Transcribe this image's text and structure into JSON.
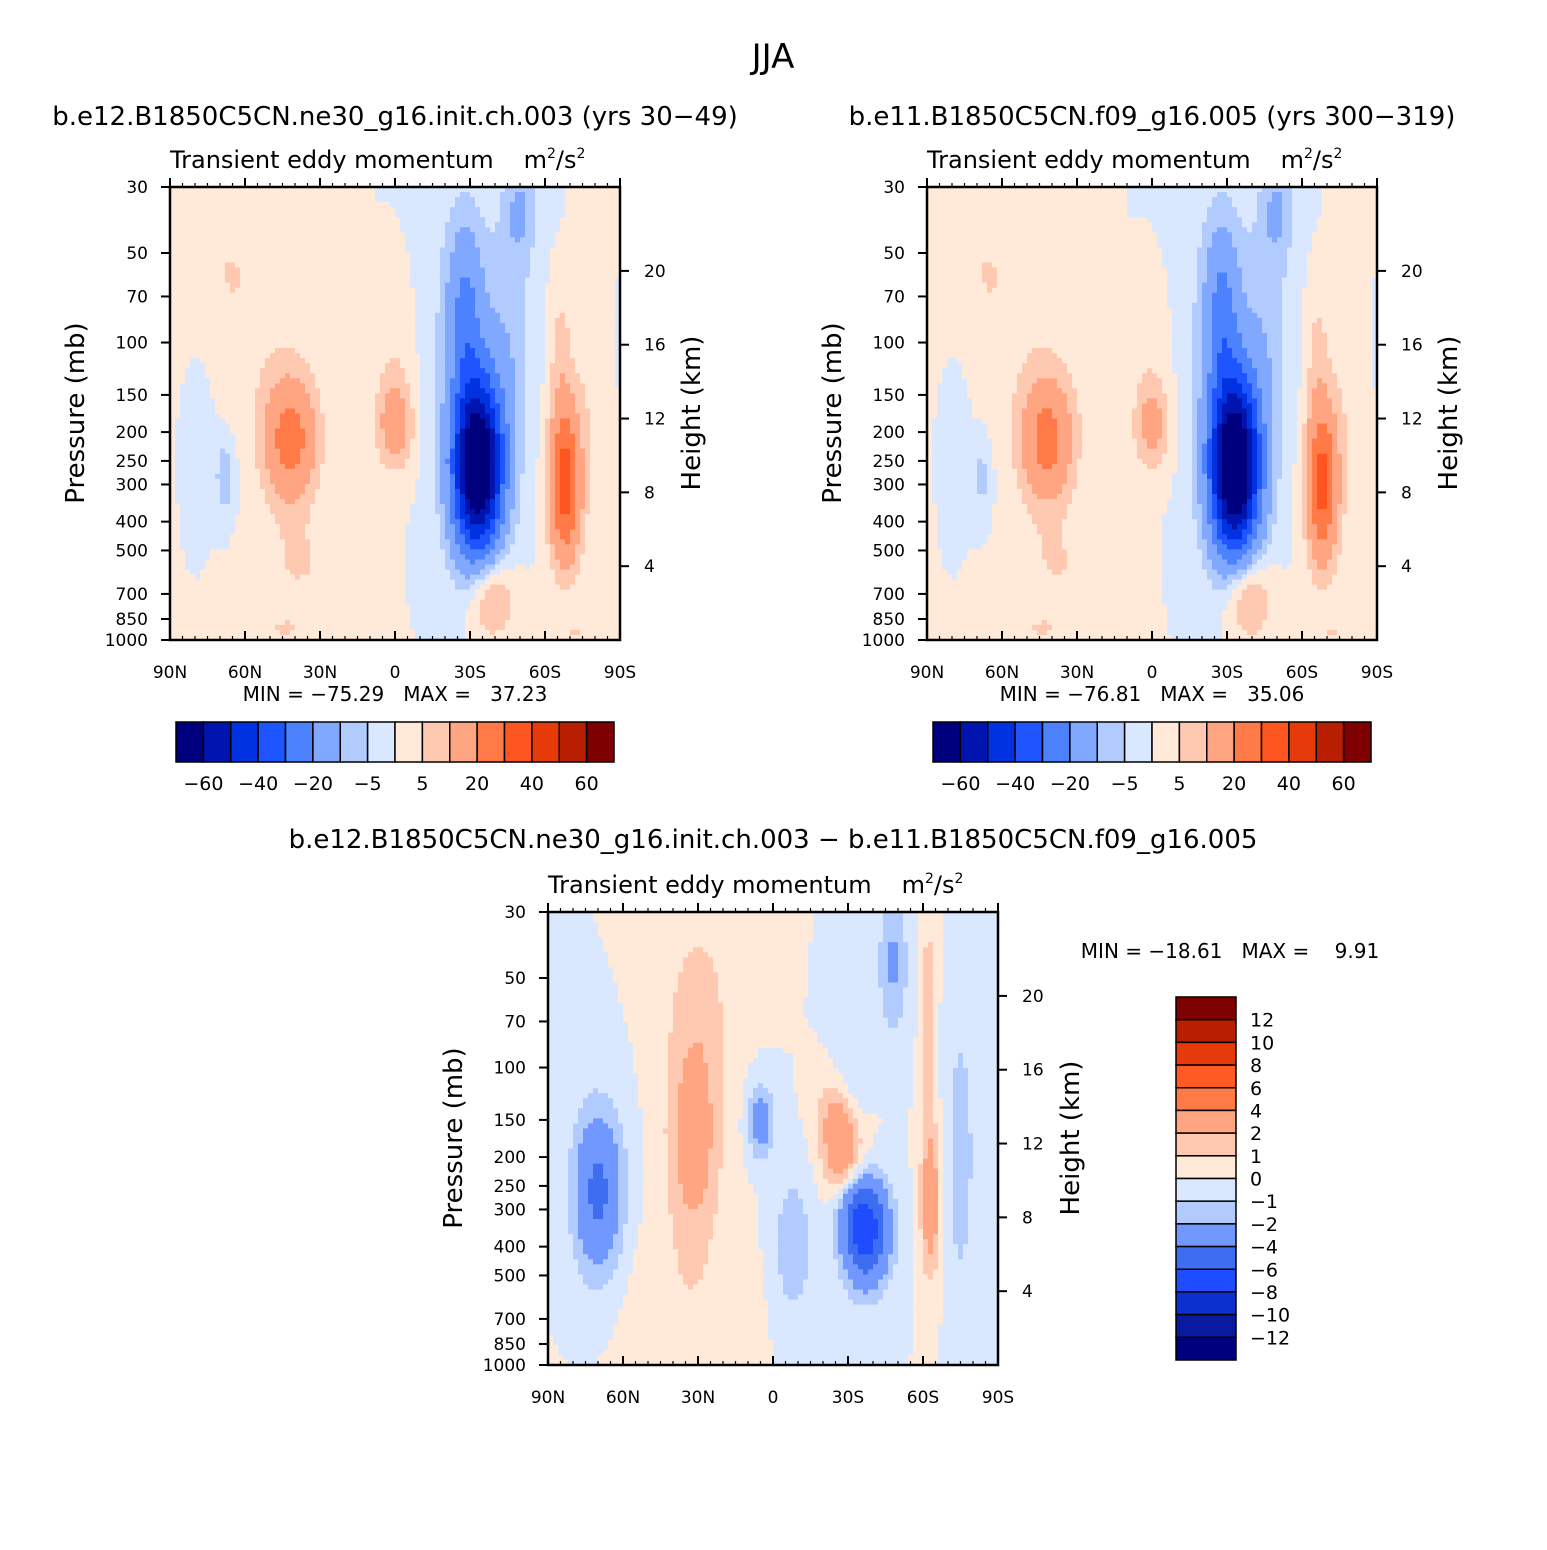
{
  "figure": {
    "season_title": "JJA",
    "colors": {
      "abs": [
        "#00007f",
        "#0014b0",
        "#0032e1",
        "#1f55ff",
        "#4d82ff",
        "#80a8ff",
        "#b2cbff",
        "#d9e8ff",
        "#ffe9d9",
        "#ffc8b0",
        "#ffa582",
        "#ff7a47",
        "#ff5520",
        "#e63a0a",
        "#b81e00",
        "#7f0000"
      ],
      "diff": [
        "#00007f",
        "#0a1aa0",
        "#0b30d0",
        "#1f4cff",
        "#3d6df0",
        "#7098ff",
        "#b2cbff",
        "#d9e8ff",
        "#ffe9d9",
        "#ffc8b0",
        "#ffa582",
        "#ff7a47",
        "#ff5a24",
        "#e63a0a",
        "#b81e00",
        "#7f0000"
      ]
    },
    "panels": [
      {
        "case_title": "b.e12.B1850C5CN.ne30_g16.init.ch.003 (yrs 30−49)",
        "subtitle_var": "Transient eddy momentum",
        "subtitle_units_base": "m",
        "subtitle_units_exp1": "2",
        "subtitle_units_mid": "/s",
        "subtitle_units_exp2": "2",
        "stats": "MIN = −75.29   MAX =   37.23",
        "ylabel": "Pressure (mb)",
        "ylabel_right": "Height (km)"
      },
      {
        "case_title": "b.e11.B1850C5CN.f09_g16.005 (yrs 300−319)",
        "subtitle_var": "Transient eddy momentum",
        "subtitle_units_base": "m",
        "subtitle_units_exp1": "2",
        "subtitle_units_mid": "/s",
        "subtitle_units_exp2": "2",
        "stats": "MIN = −76.81   MAX =   35.06",
        "ylabel": "Pressure (mb)",
        "ylabel_right": "Height (km)"
      },
      {
        "case_title": "b.e12.B1850C5CN.ne30_g16.init.ch.003 − b.e11.B1850C5CN.f09_g16.005",
        "subtitle_var": "Transient eddy momentum",
        "subtitle_units_base": "m",
        "subtitle_units_exp1": "2",
        "subtitle_units_mid": "/s",
        "subtitle_units_exp2": "2",
        "stats": "MIN = −18.61   MAX =    9.91",
        "ylabel": "Pressure (mb)",
        "ylabel_right": "Height (km)"
      }
    ]
  },
  "chart_data": [
    {
      "type": "heatmap",
      "title": "b.e12.B1850C5CN.ne30_g16.init.ch.003 (yrs 30−49)",
      "variable": "Transient eddy momentum",
      "x_ticks": [
        "90N",
        "60N",
        "30N",
        "0",
        "30S",
        "60S",
        "90S"
      ],
      "x_tick_values": [
        90,
        60,
        30,
        0,
        -30,
        -60,
        -90
      ],
      "y_ticks": [
        30,
        50,
        70,
        100,
        150,
        200,
        250,
        300,
        400,
        500,
        700,
        850,
        1000
      ],
      "y_log": true,
      "ylim": [
        1000,
        30
      ],
      "xlim": [
        90,
        -90
      ],
      "height_ticks": [
        4,
        8,
        12,
        16,
        20
      ],
      "min": -75.29,
      "max": 37.23,
      "colorbar_labels": [
        "−60",
        "−40",
        "−20",
        "−5",
        "5",
        "20",
        "40",
        "60"
      ],
      "colorbar_levels": [
        -60,
        -50,
        -40,
        -30,
        -20,
        -10,
        -5,
        0,
        5,
        10,
        20,
        30,
        40,
        50,
        60
      ],
      "features": [
        {
          "lat": -33,
          "p": 260,
          "value": -75
        },
        {
          "lat": -68,
          "p": 300,
          "value": 37
        },
        {
          "lat": 42,
          "p": 210,
          "value": 25
        },
        {
          "lat": 0,
          "p": 200,
          "value": 12
        },
        {
          "lat": 68,
          "p": 300,
          "value": -8
        },
        {
          "lat": -50,
          "p": 35,
          "value": -15
        }
      ]
    },
    {
      "type": "heatmap",
      "title": "b.e11.B1850C5CN.f09_g16.005 (yrs 300−319)",
      "variable": "Transient eddy momentum",
      "x_ticks": [
        "90N",
        "60N",
        "30N",
        "0",
        "30S",
        "60S",
        "90S"
      ],
      "x_tick_values": [
        90,
        60,
        30,
        0,
        -30,
        -60,
        -90
      ],
      "y_ticks": [
        30,
        50,
        70,
        100,
        150,
        200,
        250,
        300,
        400,
        500,
        700,
        850,
        1000
      ],
      "y_log": true,
      "ylim": [
        1000,
        30
      ],
      "xlim": [
        90,
        -90
      ],
      "height_ticks": [
        4,
        8,
        12,
        16,
        20
      ],
      "min": -76.81,
      "max": 35.06,
      "colorbar_labels": [
        "−60",
        "−40",
        "−20",
        "−5",
        "5",
        "20",
        "40",
        "60"
      ],
      "colorbar_levels": [
        -60,
        -50,
        -40,
        -30,
        -20,
        -10,
        -5,
        0,
        5,
        10,
        20,
        30,
        40,
        50,
        60
      ],
      "features": [
        {
          "lat": -33,
          "p": 260,
          "value": -76
        },
        {
          "lat": -68,
          "p": 300,
          "value": 35
        },
        {
          "lat": 42,
          "p": 210,
          "value": 24
        },
        {
          "lat": 0,
          "p": 200,
          "value": 10
        },
        {
          "lat": 68,
          "p": 300,
          "value": -6
        },
        {
          "lat": -50,
          "p": 35,
          "value": -12
        }
      ]
    },
    {
      "type": "heatmap",
      "title": "b.e12.B1850C5CN.ne30_g16.init.ch.003 − b.e11.B1850C5CN.f09_g16.005",
      "variable": "Transient eddy momentum",
      "x_ticks": [
        "90N",
        "60N",
        "30N",
        "0",
        "30S",
        "60S",
        "90S"
      ],
      "x_tick_values": [
        90,
        60,
        30,
        0,
        -30,
        -60,
        -90
      ],
      "y_ticks": [
        30,
        50,
        70,
        100,
        150,
        200,
        250,
        300,
        400,
        500,
        700,
        850,
        1000
      ],
      "y_log": true,
      "ylim": [
        1000,
        30
      ],
      "xlim": [
        90,
        -90
      ],
      "height_ticks": [
        4,
        8,
        12,
        16,
        20
      ],
      "min": -18.61,
      "max": 9.91,
      "colorbar_labels": [
        "12",
        "10",
        "8",
        "6",
        "4",
        "2",
        "1",
        "0",
        "−1",
        "−2",
        "−4",
        "−6",
        "−8",
        "−10",
        "−12"
      ],
      "colorbar_levels": [
        -12,
        -10,
        -8,
        -6,
        -4,
        -2,
        -1,
        0,
        1,
        2,
        4,
        6,
        8,
        10,
        12
      ],
      "features": [
        {
          "lat": -38,
          "p": 350,
          "value": -8
        },
        {
          "lat": -30,
          "p": 200,
          "value": 7
        },
        {
          "lat": 70,
          "p": 280,
          "value": -5
        },
        {
          "lat": 30,
          "p": 200,
          "value": 3
        },
        {
          "lat": 5,
          "p": 150,
          "value": -3
        },
        {
          "lat": -63,
          "p": 300,
          "value": 3
        }
      ]
    }
  ]
}
